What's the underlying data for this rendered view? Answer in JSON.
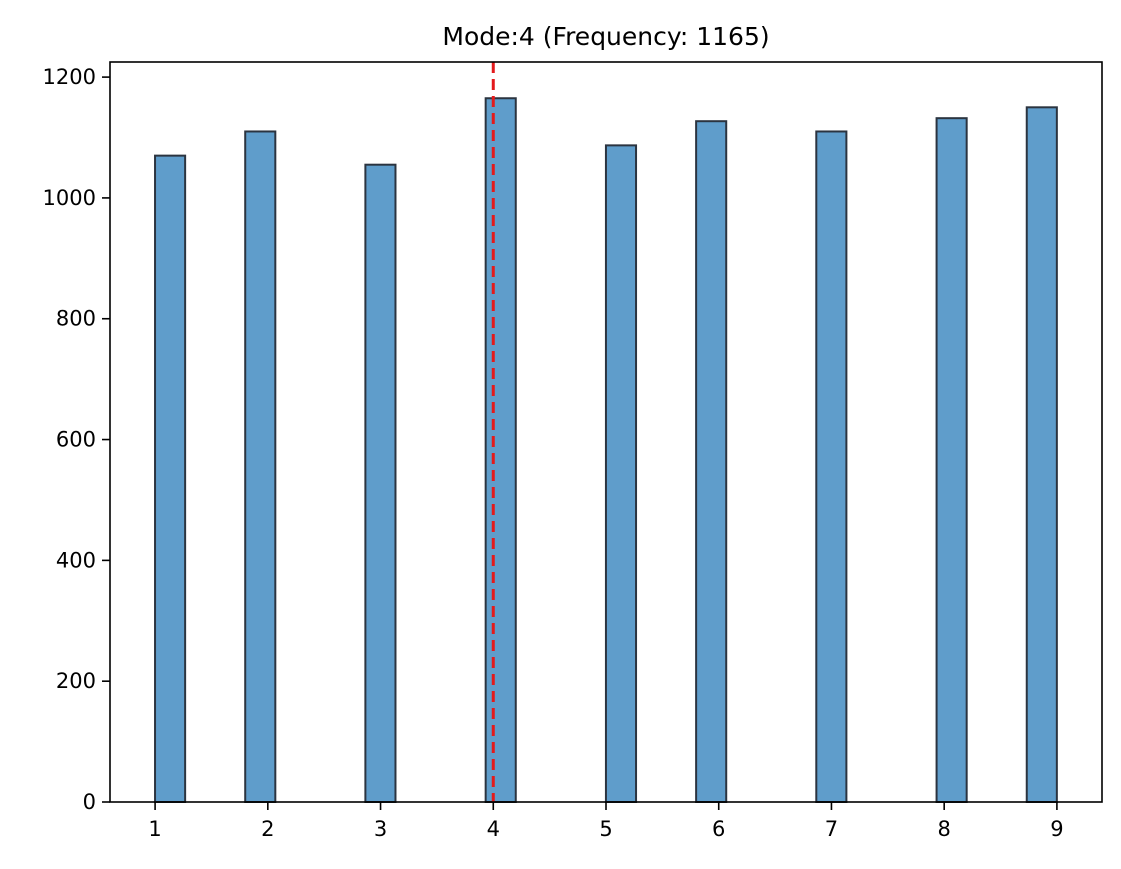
{
  "chart_data": {
    "type": "bar",
    "title": "Mode:4 (Frequency: 1165)",
    "xlabel": "",
    "ylabel": "",
    "xlim": [
      0.6,
      9.4
    ],
    "ylim": [
      0,
      1225
    ],
    "xticks": [
      1,
      2,
      3,
      4,
      5,
      6,
      7,
      8,
      9
    ],
    "yticks": [
      0,
      200,
      400,
      600,
      800,
      1000,
      1200
    ],
    "bin_width": 0.267,
    "bars": [
      {
        "x": 1.133,
        "value": 1070
      },
      {
        "x": 1.933,
        "value": 1110
      },
      {
        "x": 2.999,
        "value": 1055
      },
      {
        "x": 4.066,
        "value": 1165
      },
      {
        "x": 5.133,
        "value": 1087
      },
      {
        "x": 5.933,
        "value": 1127
      },
      {
        "x": 6.999,
        "value": 1110
      },
      {
        "x": 8.066,
        "value": 1132
      },
      {
        "x": 8.866,
        "value": 1150
      }
    ],
    "mode_line": {
      "x": 4,
      "style": "dashed",
      "color": "#e31a1c"
    },
    "bar_color": "#5f9dcb",
    "bar_edge_color": "#2b3440",
    "grid": false,
    "legend": "none"
  }
}
